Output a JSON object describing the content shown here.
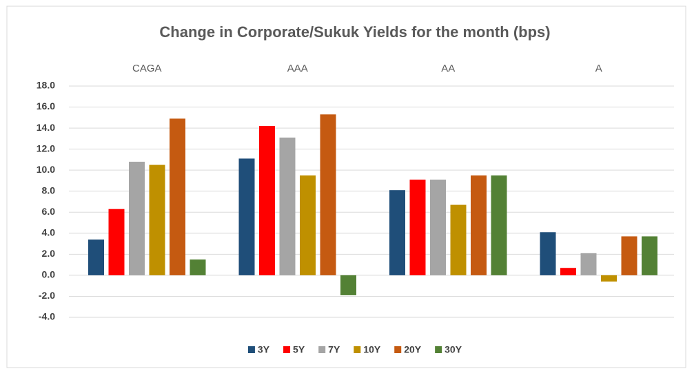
{
  "chart_data": {
    "type": "bar",
    "title": "Change in Corporate/Sukuk Yields for the month (bps)",
    "categories": [
      "CAGA",
      "AAA",
      "AA",
      "A"
    ],
    "series": [
      {
        "name": "3Y",
        "color": "#1f4e79",
        "values": [
          3.4,
          11.1,
          8.1,
          4.1
        ]
      },
      {
        "name": "5Y",
        "color": "#ff0000",
        "values": [
          6.3,
          14.2,
          9.1,
          0.7
        ]
      },
      {
        "name": "7Y",
        "color": "#a5a5a5",
        "values": [
          10.8,
          13.1,
          9.1,
          2.1
        ]
      },
      {
        "name": "10Y",
        "color": "#bf9000",
        "values": [
          10.5,
          9.5,
          6.7,
          -0.6
        ]
      },
      {
        "name": "20Y",
        "color": "#c55a11",
        "values": [
          14.9,
          15.3,
          9.5,
          3.7
        ]
      },
      {
        "name": "30Y",
        "color": "#538135",
        "values": [
          1.5,
          -1.9,
          9.5,
          3.7
        ]
      }
    ],
    "ylim": [
      -4,
      18
    ],
    "yticks": [
      {
        "value": -4,
        "label": "-4.0"
      },
      {
        "value": -2,
        "label": "-2.0"
      },
      {
        "value": 0,
        "label": "0.0"
      },
      {
        "value": 2,
        "label": "2.0"
      },
      {
        "value": 4,
        "label": "4.0"
      },
      {
        "value": 6,
        "label": "6.0"
      },
      {
        "value": 8,
        "label": "8.0"
      },
      {
        "value": 10,
        "label": "10.0"
      },
      {
        "value": 12,
        "label": "12.0"
      },
      {
        "value": 14,
        "label": "14.0"
      },
      {
        "value": 16,
        "label": "16.0"
      },
      {
        "value": 18,
        "label": "18.0"
      }
    ],
    "grid": true,
    "legend": "bottom"
  }
}
